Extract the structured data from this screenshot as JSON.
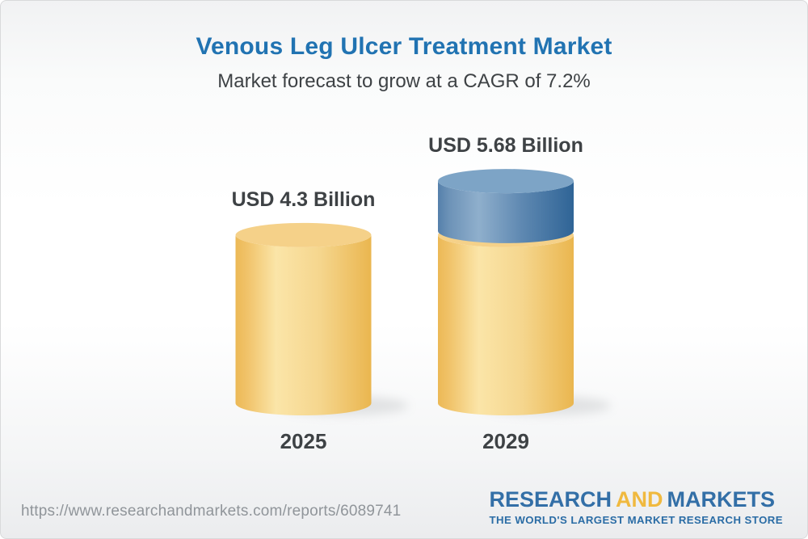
{
  "header": {
    "title": "Venous Leg Ulcer Treatment Market",
    "subtitle": "Market forecast to grow at a CAGR of 7.2%"
  },
  "chart_data": {
    "type": "bar",
    "variant": "3d-cylinder",
    "title": "Venous Leg Ulcer Treatment Market",
    "subtitle": "Market forecast to grow at a CAGR of 7.2%",
    "unit": "USD Billion",
    "cagr_percent": 7.2,
    "categories": [
      "2025",
      "2029"
    ],
    "values": [
      4.3,
      5.68
    ],
    "bars": [
      {
        "category": "2025",
        "value": 4.3,
        "value_label": "USD 4.3 Billion",
        "segments": [
          {
            "value": 4.3,
            "palette": "gold"
          }
        ]
      },
      {
        "category": "2029",
        "value": 5.68,
        "value_label": "USD 5.68 Billion",
        "segments": [
          {
            "value": 4.3,
            "palette": "gold"
          },
          {
            "value": 1.38,
            "palette": "blue"
          }
        ]
      }
    ],
    "palettes": {
      "gold": {
        "top": "#F5D189",
        "body": [
          [
            "0",
            "#ECB956"
          ],
          [
            "0.08",
            "#F0C268"
          ],
          [
            "0.3",
            "#FBE5A8"
          ],
          [
            "0.62",
            "#F5D68E"
          ],
          [
            "1",
            "#EAB64F"
          ]
        ]
      },
      "blue": {
        "top": "#7DA4C6",
        "body": [
          [
            "0",
            "#5580AB"
          ],
          [
            "0.08",
            "#6C92B7"
          ],
          [
            "0.3",
            "#8FAFCC"
          ],
          [
            "0.62",
            "#5E88B1"
          ],
          [
            "1",
            "#2F6496"
          ]
        ]
      }
    },
    "legend_position": "none",
    "axes_visible": false,
    "grid": false
  },
  "footer": {
    "url": "https://www.researchandmarkets.com/reports/6089741",
    "logo": {
      "research": "RESEARCH",
      "and": "AND",
      "markets": "MARKETS",
      "tagline": "THE WORLD'S LARGEST MARKET RESEARCH STORE"
    }
  },
  "colors": {
    "title_blue": "#2173B2",
    "text_dark": "#3E4245",
    "url_gray": "#90959A",
    "logo_blue": "#336FA7",
    "logo_gold": "#F0B93F",
    "card_border": "#D9DADB"
  }
}
